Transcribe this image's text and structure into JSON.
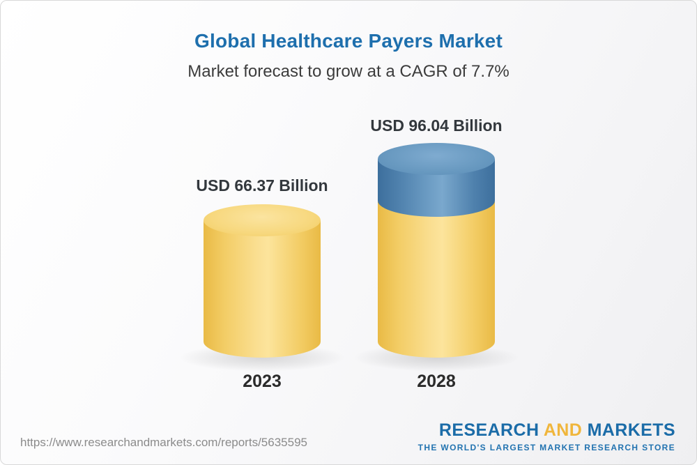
{
  "header": {
    "title": "Global Healthcare Payers Market",
    "subtitle": "Market forecast to grow at a CAGR of 7.7%"
  },
  "chart_data": {
    "type": "bar",
    "categories": [
      "2023",
      "2028"
    ],
    "values": [
      66.37,
      96.04
    ],
    "value_labels": [
      "USD 66.37 Billion",
      "USD 96.04 Billion"
    ],
    "unit": "USD Billion",
    "title": "Global Healthcare Payers Market",
    "subtitle": "Market forecast to grow at a CAGR of 7.7%",
    "cagr_percent": 7.7,
    "legend_position": "none",
    "grid": false,
    "colors": {
      "base_segment": "#f5cf67",
      "growth_segment": "#4b7fab"
    }
  },
  "footer": {
    "url": "https://www.researchandmarkets.com/reports/5635595",
    "logo": {
      "research": "RESEARCH",
      "and": "AND",
      "markets": "MARKETS",
      "tagline": "THE WORLD'S LARGEST MARKET RESEARCH STORE"
    }
  }
}
